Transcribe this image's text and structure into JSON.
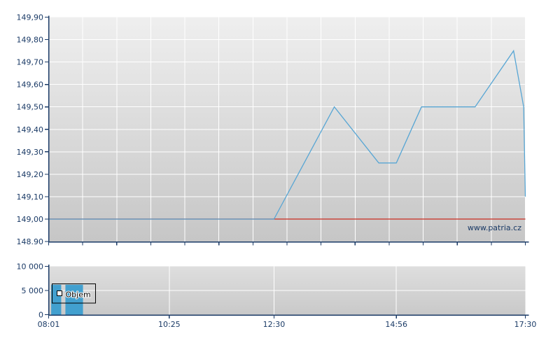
{
  "watermark": "www.patria.cz",
  "colors": {
    "axis": "#1a3a66",
    "tick_label": "#1a3a66",
    "grid": "#ffffff",
    "price_bg_top": "#efefef",
    "price_bg_bottom": "#c6c6c6",
    "vol_bg_top": "#dedede",
    "vol_bg_bottom": "#c9c9c9",
    "price_line": "#58a6d4",
    "ref_line": "#c9392e",
    "volume_bar": "#42a0cf",
    "legend_border": "#000000",
    "legend_text": "#000000",
    "legend_checkbox_fill": "#ffffff"
  },
  "chart_data": [
    {
      "type": "line",
      "name": "price",
      "title": "",
      "x_range": [
        "08:01",
        "17:30"
      ],
      "x_gridlines": 14,
      "y_range": [
        148.9,
        149.9
      ],
      "y_tick_step": 0.1,
      "y_tick_labels": [
        "149,90",
        "149,80",
        "149,70",
        "149,60",
        "149,50",
        "149,40",
        "149,30",
        "149,20",
        "149,10",
        "149,00",
        "148.90"
      ],
      "ref_line_value": 149.0,
      "series": [
        {
          "name": "price",
          "points": [
            [
              "08:01",
              149.0
            ],
            [
              "12:30",
              149.0
            ],
            [
              "13:42",
              149.5
            ],
            [
              "14:35",
              149.25
            ],
            [
              "14:56",
              149.25
            ],
            [
              "15:26",
              149.5
            ],
            [
              "16:30",
              149.5
            ],
            [
              "17:16",
              149.75
            ],
            [
              "17:28",
              149.5
            ],
            [
              "17:30",
              149.1
            ]
          ]
        }
      ]
    },
    {
      "type": "bar",
      "name": "volume",
      "legend": "Objem",
      "y_range": [
        0,
        10000
      ],
      "y_tick_step": 5000,
      "y_tick_labels": [
        "10 000",
        "5 000",
        "0"
      ],
      "x_tick_labels": [
        "08:01",
        "10:25",
        "12:30",
        "14:56",
        "17:30"
      ],
      "bars": [
        {
          "start": "08:04",
          "end": "08:16",
          "value": 6200
        },
        {
          "start": "08:21",
          "end": "08:42",
          "value": 6200
        }
      ]
    }
  ]
}
